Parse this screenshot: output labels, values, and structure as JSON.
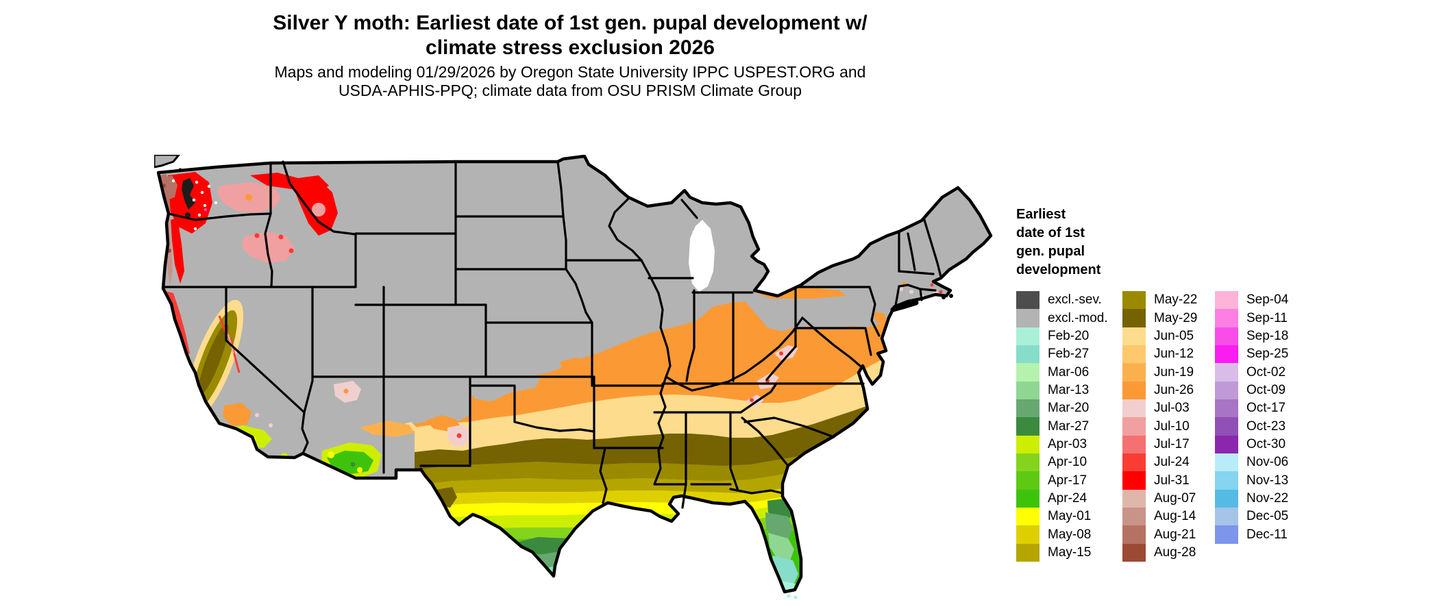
{
  "title": {
    "line1": "Silver Y moth: Earliest date of 1st gen. pupal development w/",
    "line2": "climate stress exclusion 2026"
  },
  "subtitle": {
    "line1": "Maps and modeling 01/29/2026 by Oregon State University IPPC USPEST.ORG and",
    "line2": "USDA-APHIS-PPQ; climate data from OSU PRISM Climate Group"
  },
  "legend": {
    "title_lines": [
      "Earliest",
      "date of 1st",
      "gen. pupal",
      "development"
    ],
    "columns": [
      {
        "entries": [
          {
            "label": "excl.-sev.",
            "color": "#4d4d4d"
          },
          {
            "label": "excl.-mod.",
            "color": "#b3b3b3"
          },
          {
            "label": "Feb-20",
            "color": "#aaf0d9"
          },
          {
            "label": "Feb-27",
            "color": "#86ddc9"
          },
          {
            "label": "Mar-06",
            "color": "#b4f2ae"
          },
          {
            "label": "Mar-13",
            "color": "#8fd693"
          },
          {
            "label": "Mar-20",
            "color": "#67a871"
          },
          {
            "label": "Mar-27",
            "color": "#3b8a3f"
          },
          {
            "label": "Apr-03",
            "color": "#cdee00"
          },
          {
            "label": "Apr-10",
            "color": "#84d41e"
          },
          {
            "label": "Apr-17",
            "color": "#5ec913"
          },
          {
            "label": "Apr-24",
            "color": "#3ec30c"
          },
          {
            "label": "May-01",
            "color": "#ffff00"
          },
          {
            "label": "May-08",
            "color": "#ded000"
          },
          {
            "label": "May-15",
            "color": "#b5a500"
          }
        ]
      },
      {
        "entries": [
          {
            "label": "May-22",
            "color": "#9a8a00"
          },
          {
            "label": "May-29",
            "color": "#756200"
          },
          {
            "label": "Jun-05",
            "color": "#fedc8d"
          },
          {
            "label": "Jun-12",
            "color": "#fdc96c"
          },
          {
            "label": "Jun-19",
            "color": "#fbb04e"
          },
          {
            "label": "Jun-26",
            "color": "#fb9a35"
          },
          {
            "label": "Jul-03",
            "color": "#f2cfcf"
          },
          {
            "label": "Jul-10",
            "color": "#f0a0a0"
          },
          {
            "label": "Jul-17",
            "color": "#f57070"
          },
          {
            "label": "Jul-24",
            "color": "#fa3c34"
          },
          {
            "label": "Jul-31",
            "color": "#ff0000"
          },
          {
            "label": "Aug-07",
            "color": "#dfb6ac"
          },
          {
            "label": "Aug-14",
            "color": "#c89489"
          },
          {
            "label": "Aug-21",
            "color": "#b57263"
          },
          {
            "label": "Aug-28",
            "color": "#9c4a33"
          }
        ]
      },
      {
        "entries": [
          {
            "label": "Sep-04",
            "color": "#ffb3d9"
          },
          {
            "label": "Sep-11",
            "color": "#fc7fe3"
          },
          {
            "label": "Sep-18",
            "color": "#fa4ce9"
          },
          {
            "label": "Sep-25",
            "color": "#fa1cf0"
          },
          {
            "label": "Oct-02",
            "color": "#d9bde8"
          },
          {
            "label": "Oct-09",
            "color": "#c09ad8"
          },
          {
            "label": "Oct-17",
            "color": "#a874c6"
          },
          {
            "label": "Oct-23",
            "color": "#9150b5"
          },
          {
            "label": "Oct-30",
            "color": "#8b27ad"
          },
          {
            "label": "Nov-06",
            "color": "#b8ecfa"
          },
          {
            "label": "Nov-13",
            "color": "#85d4f0"
          },
          {
            "label": "Nov-22",
            "color": "#55bbe4"
          },
          {
            "label": "Dec-05",
            "color": "#a6c3e8"
          },
          {
            "label": "Dec-11",
            "color": "#7d95ea"
          }
        ]
      }
    ]
  },
  "map": {
    "border_color": "#000000",
    "background_color": "#ffffff",
    "excluded_severe_color": "#4d4d4d",
    "excluded_moderate_color": "#b3b3b3"
  }
}
